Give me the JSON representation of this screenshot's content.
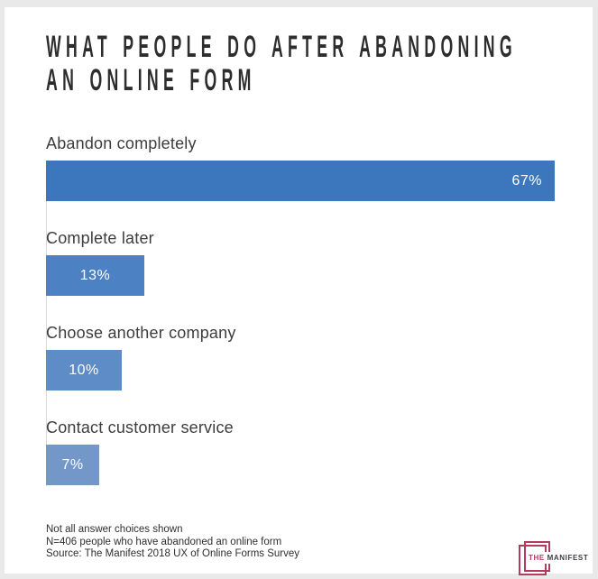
{
  "title": {
    "line1": "WHAT PEOPLE DO AFTER ABANDONING",
    "line2": "AN ONLINE FORM"
  },
  "chart_data": {
    "type": "bar",
    "orientation": "horizontal",
    "title": "WHAT PEOPLE DO AFTER ABANDONING AN ONLINE FORM",
    "categories": [
      "Abandon completely",
      "Complete later",
      "Choose another company",
      "Contact customer service"
    ],
    "values": [
      67,
      13,
      10,
      7
    ],
    "value_labels": [
      "67%",
      "13%",
      "10%",
      "7%"
    ],
    "unit": "%",
    "bar_colors": [
      "#3c77be",
      "#4c82c4",
      "#5e8cc6",
      "#7397c9"
    ],
    "xlim": [
      0,
      67
    ],
    "grid": false,
    "legend": false,
    "value_label_position": "inside-bar"
  },
  "footer": {
    "notes": [
      "Not all answer choices shown",
      "N=406 people who have abandoned an online form",
      "Source: The Manifest 2018 UX of Online Forms Survey"
    ]
  },
  "logo": {
    "word1": "THE",
    "word2": "MANIFEST",
    "accent_color": "#b23b5e"
  },
  "colors": {
    "page_background": "#e9e9e9",
    "card_background": "#ffffff",
    "title_text": "#2d2d2d",
    "category_text": "#3d3d3d",
    "value_text": "#ffffff",
    "axis_line": "#d9d9d9",
    "footer_text": "#2f2f2f"
  }
}
